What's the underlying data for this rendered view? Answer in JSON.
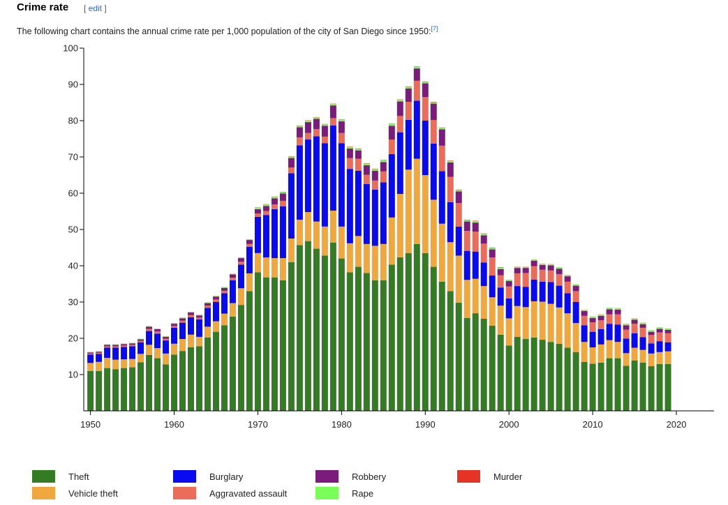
{
  "heading": "Crime rate",
  "edit_link": "edit",
  "description": "The following chart contains the annual crime rate per 1,000 population of the city of San Diego since 1950:",
  "footnote": "[7]",
  "chart_data": {
    "type": "stacked-bar",
    "x": [
      1950,
      1951,
      1952,
      1953,
      1954,
      1955,
      1956,
      1957,
      1958,
      1959,
      1960,
      1961,
      1962,
      1963,
      1964,
      1965,
      1966,
      1967,
      1968,
      1969,
      1970,
      1971,
      1972,
      1973,
      1974,
      1975,
      1976,
      1977,
      1978,
      1979,
      1980,
      1981,
      1982,
      1983,
      1984,
      1985,
      1986,
      1987,
      1988,
      1989,
      1990,
      1991,
      1992,
      1993,
      1994,
      1995,
      1996,
      1997,
      1998,
      1999,
      2000,
      2001,
      2002,
      2003,
      2004,
      2005,
      2006,
      2007,
      2008,
      2009,
      2010,
      2011,
      2012,
      2013,
      2014,
      2015,
      2016,
      2017,
      2018,
      2019
    ],
    "xlim": [
      1949.2,
      2024.5
    ],
    "xticks": [
      1950,
      1960,
      1970,
      1980,
      1990,
      2000,
      2010,
      2020
    ],
    "ylim": [
      0,
      100
    ],
    "yticks": [
      10,
      20,
      30,
      40,
      50,
      60,
      70,
      80,
      90,
      100
    ],
    "series": [
      {
        "name": "Theft",
        "color": "#347c24",
        "values": [
          11,
          11,
          11.8,
          11.5,
          11.8,
          12,
          13.4,
          15.4,
          14.5,
          12.8,
          15.5,
          16.5,
          17.5,
          17.8,
          20.2,
          21.8,
          23.6,
          26,
          29.2,
          33,
          38.2,
          36.8,
          36.8,
          36,
          41,
          45.7,
          46.8,
          44.7,
          42.8,
          46.4,
          42,
          38.2,
          39.7,
          38,
          36,
          36,
          40.3,
          42.3,
          43.5,
          46,
          43.5,
          39.7,
          35.6,
          33,
          29.8,
          25.6,
          26.9,
          25.4,
          23.5,
          21,
          18,
          20.4,
          19.8,
          20.2,
          19.6,
          19,
          18.5,
          17.4,
          16.2,
          13.5,
          13,
          13.3,
          14.5,
          14.5,
          12.4,
          13.9,
          13.3,
          12.3,
          12.9,
          12.9
        ]
      },
      {
        "name": "Vehicle theft",
        "color": "#f0a83c",
        "values": [
          2.2,
          2.5,
          2.8,
          2.6,
          2.4,
          2.3,
          2.3,
          2.8,
          2.8,
          3,
          3,
          3.3,
          3.5,
          2.6,
          3,
          2.9,
          3.2,
          3.7,
          4.6,
          4.9,
          5.3,
          5.5,
          5.3,
          6.1,
          6.5,
          7,
          8,
          7.5,
          8,
          8.8,
          8.8,
          8,
          8.5,
          8,
          9.5,
          10,
          13,
          17.5,
          23,
          23.5,
          21.5,
          18.5,
          16,
          13.5,
          13,
          10.5,
          9.5,
          9,
          7.8,
          8,
          7.5,
          8.5,
          8.8,
          10,
          10.5,
          10.5,
          10,
          9.5,
          8,
          5.5,
          4.5,
          5,
          5,
          4.5,
          3.5,
          3.5,
          3.5,
          3.5,
          3.3,
          3.5
        ]
      },
      {
        "name": "Burglary",
        "color": "#0a0af0",
        "values": [
          2.3,
          2.2,
          2.8,
          3.3,
          3.4,
          3.5,
          3.2,
          3.8,
          4,
          3.6,
          4.4,
          4.5,
          4.8,
          4.8,
          5.2,
          5.3,
          5.6,
          6.3,
          6.5,
          7.3,
          10,
          11.7,
          13.5,
          14.3,
          18,
          20.5,
          20,
          23.5,
          23,
          23.5,
          23,
          20.5,
          18,
          16.5,
          15.5,
          17,
          17.5,
          17,
          13.7,
          16,
          15,
          15.5,
          14.5,
          11,
          8,
          8,
          7.5,
          6.5,
          6,
          5,
          5.5,
          5.5,
          5.6,
          6,
          5.5,
          6,
          6,
          5.5,
          5.8,
          4.6,
          4.3,
          4.2,
          4.5,
          4.8,
          4,
          4,
          3.5,
          2.8,
          3,
          2.5
        ]
      },
      {
        "name": "Aggravated assault",
        "color": "#ec6c5a",
        "values": [
          0.3,
          0.3,
          0.4,
          0.4,
          0.4,
          0.4,
          0.4,
          0.6,
          0.6,
          0.5,
          0.5,
          0.6,
          0.6,
          0.5,
          0.6,
          0.7,
          0.7,
          0.7,
          0.8,
          0.8,
          0.9,
          1.1,
          1.3,
          1.5,
          1.6,
          2.2,
          1.8,
          2,
          1.8,
          2,
          2.8,
          3,
          3.3,
          2.6,
          2.5,
          3,
          4,
          4.5,
          5,
          5.5,
          6.5,
          6.5,
          7,
          7,
          6.5,
          5.5,
          5.5,
          5.2,
          5,
          3.4,
          3.3,
          3.5,
          3.8,
          3.7,
          3.3,
          3.2,
          3.2,
          3.2,
          3,
          2.6,
          2.6,
          2.5,
          2.6,
          2.8,
          2.5,
          2.6,
          2.6,
          2.3,
          2.4,
          2.5
        ]
      },
      {
        "name": "Robbery",
        "color": "#7b1b7b",
        "values": [
          0.3,
          0.3,
          0.4,
          0.4,
          0.4,
          0.4,
          0.4,
          0.6,
          0.6,
          0.5,
          0.6,
          0.6,
          0.7,
          0.6,
          0.7,
          0.8,
          0.8,
          0.9,
          1,
          1.1,
          1.2,
          1.4,
          1.7,
          2,
          2.6,
          2.8,
          3,
          2.8,
          3,
          3.5,
          3.2,
          2.6,
          2.3,
          2.6,
          2.7,
          2.6,
          3.8,
          4,
          3.7,
          3.4,
          3.8,
          4.5,
          4.5,
          4,
          3.2,
          2.6,
          2.5,
          2.3,
          2.2,
          1.7,
          1.5,
          1.5,
          1.4,
          1.5,
          1.3,
          1.4,
          1.5,
          1.5,
          1.5,
          1.3,
          1.2,
          1.2,
          1.4,
          1.3,
          1.2,
          1.1,
          1,
          0.9,
          1,
          0.9
        ]
      },
      {
        "name": "Rape",
        "color": "#79ff57",
        "values": [
          0.1,
          0.1,
          0.1,
          0.1,
          0.1,
          0.1,
          0.1,
          0.1,
          0.1,
          0.1,
          0.15,
          0.15,
          0.15,
          0.15,
          0.15,
          0.15,
          0.15,
          0.15,
          0.15,
          0.15,
          0.4,
          0.4,
          0.4,
          0.4,
          0.4,
          0.4,
          0.4,
          0.4,
          0.4,
          0.4,
          0.45,
          0.45,
          0.45,
          0.45,
          0.45,
          0.45,
          0.45,
          0.45,
          0.45,
          0.45,
          0.4,
          0.4,
          0.4,
          0.4,
          0.4,
          0.4,
          0.4,
          0.4,
          0.4,
          0.4,
          0.3,
          0.3,
          0.3,
          0.3,
          0.3,
          0.3,
          0.3,
          0.3,
          0.3,
          0.3,
          0.35,
          0.35,
          0.35,
          0.35,
          0.35,
          0.35,
          0.35,
          0.35,
          0.35,
          0.35
        ]
      },
      {
        "name": "Murder",
        "color": "#e53325",
        "values": [
          0.04,
          0.04,
          0.04,
          0.04,
          0.04,
          0.04,
          0.04,
          0.04,
          0.04,
          0.04,
          0.04,
          0.04,
          0.04,
          0.04,
          0.04,
          0.04,
          0.04,
          0.04,
          0.04,
          0.04,
          0.08,
          0.08,
          0.08,
          0.08,
          0.08,
          0.08,
          0.08,
          0.08,
          0.08,
          0.08,
          0.1,
          0.1,
          0.1,
          0.1,
          0.1,
          0.1,
          0.1,
          0.1,
          0.1,
          0.1,
          0.1,
          0.1,
          0.1,
          0.1,
          0.1,
          0.1,
          0.1,
          0.1,
          0.1,
          0.1,
          0.05,
          0.05,
          0.05,
          0.05,
          0.05,
          0.05,
          0.05,
          0.05,
          0.05,
          0.05,
          0.05,
          0.05,
          0.05,
          0.05,
          0.05,
          0.05,
          0.05,
          0.05,
          0.05,
          0.05
        ]
      }
    ]
  }
}
